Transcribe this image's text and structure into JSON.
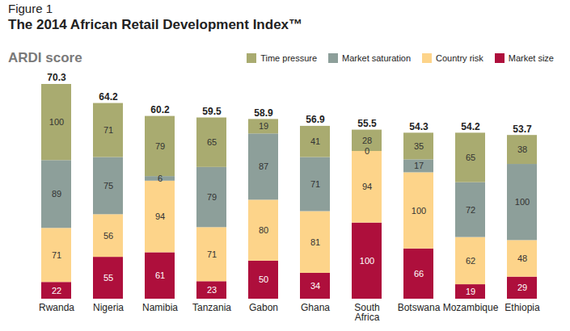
{
  "chart_data": {
    "type": "bar",
    "subtitle": "Figure 1",
    "title": "The 2014 African Retail Development Index™",
    "ylabel": "ARDI score",
    "stacked": true,
    "data_labels": true,
    "tick_labels": "x",
    "legend": "top-right",
    "ylim": [
      0,
      282
    ],
    "yticks": [],
    "categories": [
      "Rwanda",
      "Nigeria",
      "Namibia",
      "Tanzania",
      "Gabon",
      "Ghana",
      "South Africa",
      "Botswana",
      "Mozambique",
      "Ethiopia"
    ],
    "scores": [
      70.3,
      64.2,
      60.2,
      59.5,
      58.9,
      56.9,
      55.5,
      54.3,
      54.2,
      53.7
    ],
    "series": [
      {
        "name": "Time pressure",
        "color": "#a9ab70",
        "values": [
          100,
          71,
          79,
          65,
          19,
          41,
          28,
          35,
          65,
          38
        ]
      },
      {
        "name": "Market saturation",
        "color": "#8d9f9a",
        "values": [
          89,
          75,
          6,
          79,
          87,
          71,
          0,
          17,
          72,
          100
        ]
      },
      {
        "name": "Country risk",
        "color": "#fdd48a",
        "values": [
          71,
          56,
          94,
          71,
          80,
          81,
          94,
          100,
          62,
          48
        ]
      },
      {
        "name": "Market size",
        "color": "#ae0f3c",
        "values": [
          22,
          55,
          61,
          23,
          50,
          34,
          100,
          66,
          19,
          29
        ]
      }
    ]
  }
}
